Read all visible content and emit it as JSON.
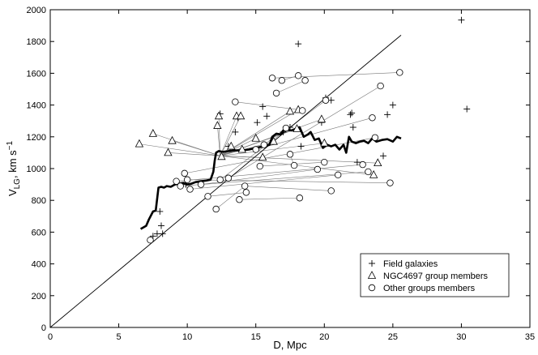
{
  "chart_data": {
    "type": "scatter",
    "xlabel": "D, Mpc",
    "ylabel_main": "V",
    "ylabel_sub": "LG",
    "ylabel_units": ", km s",
    "ylabel_exp": "−1",
    "xlim": [
      0,
      35
    ],
    "ylim": [
      0,
      2000
    ],
    "x_ticks": [
      0,
      5,
      10,
      15,
      20,
      25,
      30,
      35
    ],
    "y_ticks": [
      0,
      200,
      400,
      600,
      800,
      1000,
      1200,
      1400,
      1600,
      1800,
      2000
    ],
    "grid": false,
    "legend_position": "bottom-right",
    "legend": [
      {
        "marker": "plus",
        "label": "Field galaxies"
      },
      {
        "marker": "triangle",
        "label": "NGC4697 group members"
      },
      {
        "marker": "circle",
        "label": "Other groups members"
      }
    ],
    "hubble_line": {
      "x": [
        0,
        25.6
      ],
      "y": [
        0,
        1840
      ]
    },
    "mean_curve": {
      "x": [
        6.6,
        7.0,
        7.2,
        7.5,
        7.7,
        7.9,
        8.1,
        8.3,
        8.5,
        8.8,
        9.1,
        9.4,
        9.7,
        10.0,
        10.3,
        10.6,
        11.0,
        11.4,
        11.7,
        11.9,
        12.0,
        12.1,
        12.3,
        12.6,
        13.0,
        13.5,
        14.0,
        14.5,
        15.0,
        15.5,
        16.0,
        16.2,
        16.5,
        16.8,
        17.0,
        17.3,
        17.6,
        17.9,
        18.2,
        18.5,
        18.8,
        19.0,
        19.3,
        19.6,
        19.9,
        20.2,
        20.5,
        20.8,
        21.1,
        21.4,
        21.6,
        21.8,
        22.0,
        22.3,
        22.6,
        22.9,
        23.2,
        23.5,
        23.8,
        24.2,
        24.6,
        25.0,
        25.3,
        25.6
      ],
      "y": [
        620,
        640,
        680,
        730,
        735,
        880,
        885,
        880,
        890,
        885,
        900,
        905,
        910,
        900,
        905,
        915,
        920,
        925,
        930,
        980,
        1050,
        1100,
        1110,
        1105,
        1110,
        1115,
        1115,
        1120,
        1130,
        1140,
        1150,
        1200,
        1220,
        1215,
        1240,
        1245,
        1240,
        1250,
        1260,
        1200,
        1215,
        1230,
        1180,
        1190,
        1130,
        1150,
        1140,
        1150,
        1120,
        1150,
        1100,
        1200,
        1170,
        1160,
        1170,
        1175,
        1160,
        1190,
        1170,
        1180,
        1185,
        1170,
        1200,
        1190
      ]
    },
    "series": [
      {
        "name": "Field galaxies",
        "marker": "plus",
        "x": [
          7.5,
          7.8,
          8.0,
          8.1,
          8.2,
          9.9,
          12.4,
          13.0,
          13.5,
          13.7,
          15.1,
          15.5,
          15.8,
          17.0,
          17.5,
          18.1,
          18.3,
          19.8,
          20.1,
          20.5,
          21.9,
          22.0,
          22.1,
          22.4,
          24.3,
          24.6,
          25.0,
          30.0,
          30.4
        ],
        "y": [
          575,
          590,
          730,
          640,
          590,
          900,
          1345,
          1140,
          1230,
          1320,
          1290,
          1390,
          1330,
          1230,
          1260,
          1785,
          1140,
          1290,
          1445,
          1430,
          1340,
          1350,
          1260,
          1040,
          1080,
          1340,
          1400,
          1935,
          1375
        ]
      },
      {
        "name": "NGC4697 group members",
        "marker": "triangle",
        "x": [
          6.5,
          7.5,
          8.6,
          8.9,
          12.2,
          12.3,
          12.5,
          13.2,
          13.6,
          13.9,
          14.0,
          15.0,
          15.5,
          16.3,
          17.5,
          18.0,
          18.1,
          19.8,
          20.0,
          23.6,
          23.9
        ],
        "y": [
          1155,
          1220,
          1100,
          1175,
          1270,
          1330,
          1075,
          1140,
          1330,
          1330,
          1120,
          1190,
          1070,
          1170,
          1360,
          1250,
          1370,
          1310,
          1160,
          960,
          1035
        ]
      },
      {
        "name": "Other groups members",
        "marker": "circle",
        "x": [
          7.3,
          9.2,
          9.5,
          9.8,
          10.0,
          10.2,
          11.0,
          11.5,
          12.1,
          12.4,
          13.0,
          13.5,
          13.8,
          14.2,
          14.3,
          15.0,
          15.3,
          15.6,
          16.2,
          16.5,
          16.9,
          17.2,
          17.5,
          17.8,
          18.1,
          18.2,
          18.4,
          18.6,
          19.5,
          20.0,
          20.1,
          20.5,
          21.0,
          22.8,
          23.2,
          23.5,
          23.7,
          24.1,
          24.8,
          25.5
        ],
        "y": [
          550,
          920,
          890,
          970,
          930,
          870,
          900,
          825,
          745,
          930,
          940,
          1420,
          805,
          890,
          850,
          1120,
          1015,
          1150,
          1570,
          1475,
          1555,
          1255,
          1090,
          1020,
          1585,
          815,
          1365,
          1555,
          995,
          1040,
          1430,
          860,
          960,
          1025,
          980,
          1320,
          1195,
          1520,
          910,
          1605
        ]
      }
    ],
    "connector_lines": [
      [
        [
          6.5,
          1155
        ],
        [
          12.4,
          1080
        ]
      ],
      [
        [
          7.5,
          1220
        ],
        [
          12.4,
          1080
        ]
      ],
      [
        [
          8.6,
          1100
        ],
        [
          12.4,
          1080
        ]
      ],
      [
        [
          8.9,
          1175
        ],
        [
          12.4,
          1080
        ]
      ],
      [
        [
          12.2,
          1270
        ],
        [
          12.4,
          1080
        ]
      ],
      [
        [
          12.3,
          1330
        ],
        [
          12.4,
          1080
        ]
      ],
      [
        [
          13.2,
          1140
        ],
        [
          12.4,
          1080
        ]
      ],
      [
        [
          13.6,
          1330
        ],
        [
          12.4,
          1080
        ]
      ],
      [
        [
          13.9,
          1330
        ],
        [
          12.4,
          1080
        ]
      ],
      [
        [
          14.0,
          1120
        ],
        [
          12.4,
          1080
        ]
      ],
      [
        [
          15.0,
          1190
        ],
        [
          12.4,
          1080
        ]
      ],
      [
        [
          15.5,
          1070
        ],
        [
          12.4,
          1080
        ]
      ],
      [
        [
          16.3,
          1170
        ],
        [
          12.4,
          1080
        ]
      ],
      [
        [
          17.5,
          1360
        ],
        [
          12.4,
          1080
        ]
      ],
      [
        [
          18.0,
          1250
        ],
        [
          12.4,
          1080
        ]
      ],
      [
        [
          18.1,
          1370
        ],
        [
          12.4,
          1080
        ]
      ],
      [
        [
          19.8,
          1310
        ],
        [
          12.4,
          1080
        ]
      ],
      [
        [
          20.0,
          1160
        ],
        [
          12.4,
          1080
        ]
      ],
      [
        [
          23.6,
          960
        ],
        [
          12.4,
          1080
        ]
      ],
      [
        [
          23.9,
          1035
        ],
        [
          12.4,
          1080
        ]
      ],
      [
        [
          13.5,
          1420
        ],
        [
          18.2,
          1370
        ]
      ],
      [
        [
          16.2,
          1570
        ],
        [
          25.5,
          1605
        ]
      ],
      [
        [
          16.5,
          1475
        ],
        [
          18.6,
          1555
        ]
      ],
      [
        [
          16.9,
          1555
        ],
        [
          18.1,
          1585
        ]
      ],
      [
        [
          12.4,
          930
        ],
        [
          20.1,
          1430
        ]
      ],
      [
        [
          13.0,
          940
        ],
        [
          24.1,
          1520
        ]
      ],
      [
        [
          9.2,
          920
        ],
        [
          22.8,
          1025
        ]
      ],
      [
        [
          9.5,
          890
        ],
        [
          23.2,
          980
        ]
      ],
      [
        [
          9.8,
          970
        ],
        [
          23.7,
          1195
        ]
      ],
      [
        [
          10.0,
          930
        ],
        [
          24.8,
          910
        ]
      ],
      [
        [
          10.2,
          870
        ],
        [
          21.0,
          960
        ]
      ],
      [
        [
          11.0,
          900
        ],
        [
          19.5,
          995
        ]
      ],
      [
        [
          11.5,
          825
        ],
        [
          14.3,
          850
        ]
      ],
      [
        [
          12.1,
          745
        ],
        [
          14.2,
          890
        ]
      ],
      [
        [
          13.8,
          805
        ],
        [
          18.1,
          815
        ]
      ],
      [
        [
          14.2,
          890
        ],
        [
          20.5,
          860
        ]
      ],
      [
        [
          15.0,
          1120
        ],
        [
          23.5,
          1320
        ]
      ],
      [
        [
          15.3,
          1015
        ],
        [
          20.0,
          1040
        ]
      ],
      [
        [
          15.6,
          1150
        ],
        [
          17.2,
          1255
        ]
      ],
      [
        [
          17.5,
          1090
        ],
        [
          17.8,
          1020
        ]
      ]
    ]
  }
}
